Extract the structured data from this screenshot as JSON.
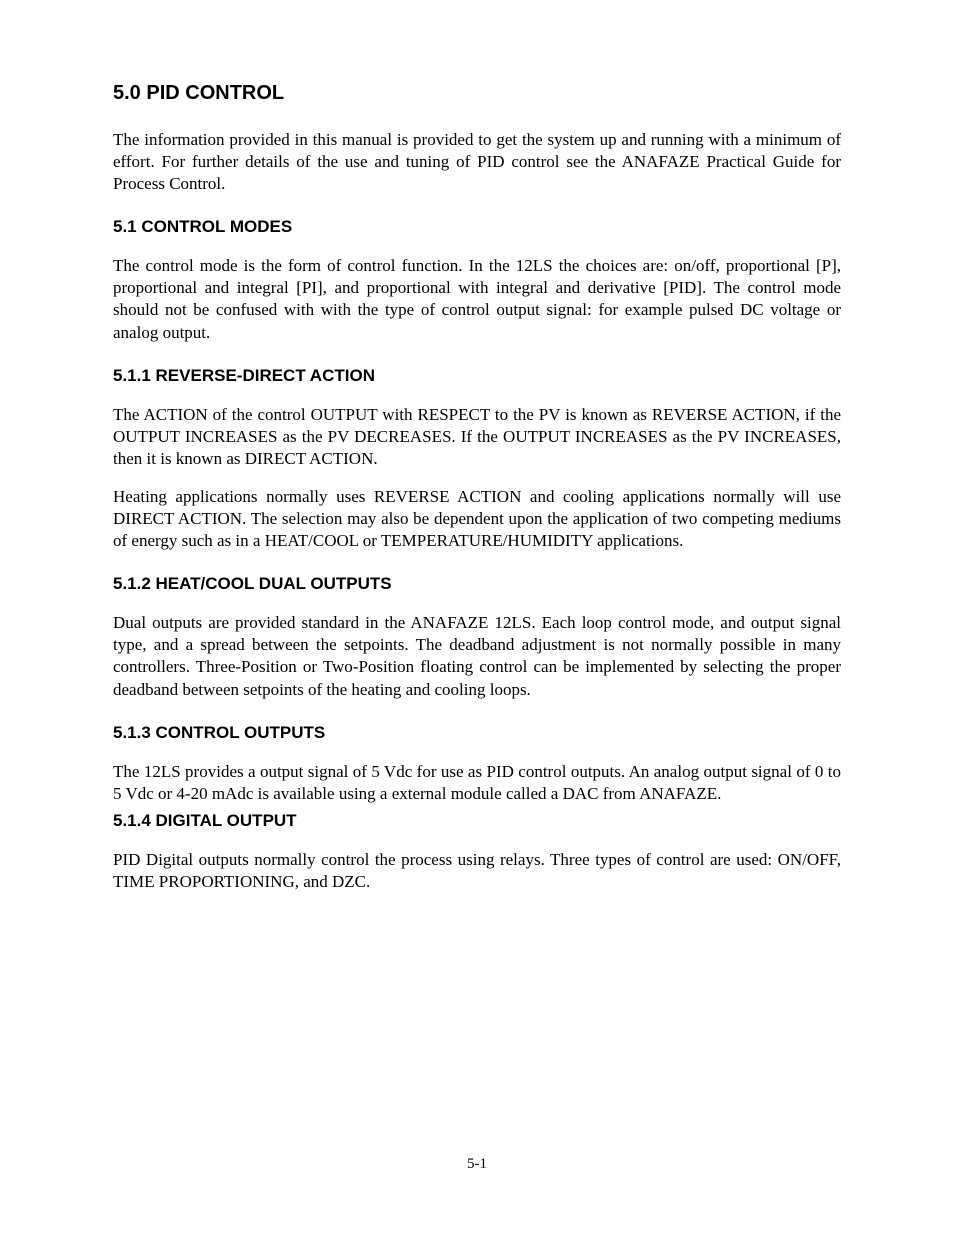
{
  "section_5_0": {
    "heading": "5.0  PID CONTROL",
    "para1": "The information provided in this manual is provided to get the system up and running with a minimum of effort. For further details of the use and tuning of PID control see the ANAFAZE Practical Guide for Process Control."
  },
  "section_5_1": {
    "heading": "5.1  CONTROL MODES",
    "para1": "The control mode is the form of control function.  In the 12LS the choices are: on/off, proportional [P], proportional and integral [PI], and proportional with integral and derivative [PID].  The control mode should not be confused with with the type of control output signal: for example pulsed DC voltage or analog output."
  },
  "section_5_1_1": {
    "heading": "5.1.1  REVERSE-DIRECT ACTION",
    "para1": "The ACTION of the control OUTPUT with RESPECT to the PV is known as REVERSE ACTION, if the OUTPUT INCREASES as the PV DECREASES. If the OUTPUT INCREASES as the PV INCREASES, then it is known as DIRECT ACTION.",
    "para2": "Heating applications normally uses REVERSE ACTION and cooling applications normally will use DIRECT ACTION.  The selection may also be dependent upon the application of two competing mediums of energy such as in a HEAT/COOL or TEMPERATURE/HUMIDITY applications."
  },
  "section_5_1_2": {
    "heading": "5.1.2  HEAT/COOL DUAL OUTPUTS",
    "para1": "Dual outputs are provided standard in the ANAFAZE 12LS.  Each loop control mode, and output signal type, and a spread between the setpoints.  The deadband adjustment is not normally possible in many controllers.  Three-Position or Two-Position floating control can be implemented by selecting the proper deadband between setpoints of the heating and cooling loops."
  },
  "section_5_1_3": {
    "heading": "5.1.3  CONTROL OUTPUTS",
    "para1": "The 12LS provides a output signal of 5 Vdc for use as PID control outputs. An analog output signal of 0 to 5 Vdc or 4-20 mAdc is available using a external module called a DAC from ANAFAZE."
  },
  "section_5_1_4": {
    "heading": "5.1.4  DIGITAL OUTPUT",
    "para1": "PID Digital outputs normally control the process using relays. Three types of control are used: ON/OFF, TIME PROPORTIONING, and DZC."
  },
  "page_number": "5-1"
}
